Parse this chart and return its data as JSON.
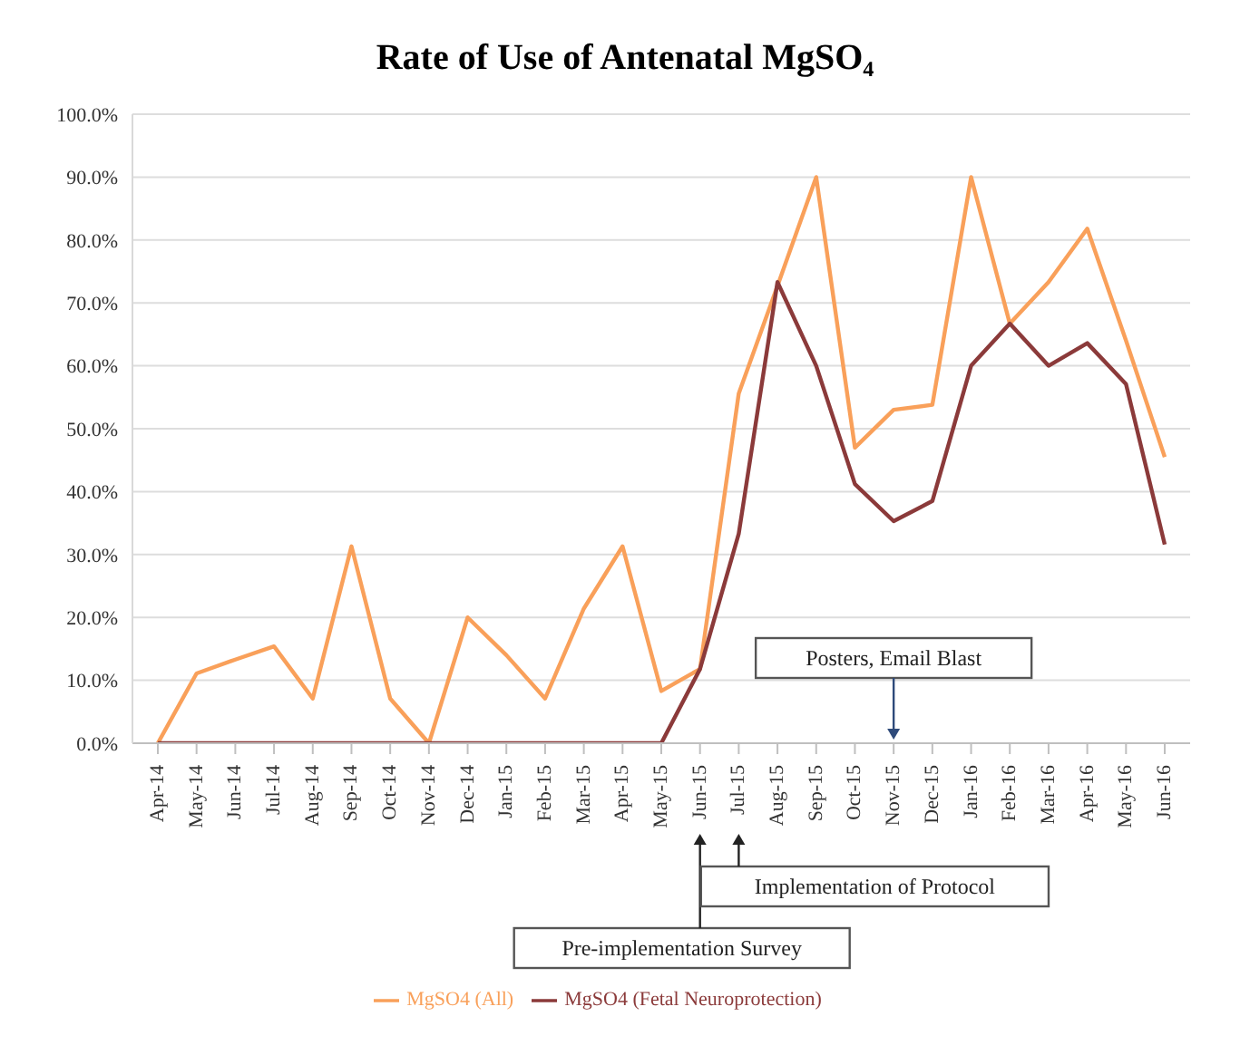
{
  "chart_data": {
    "type": "line",
    "title": "Rate of Use of Antenatal MgSO₄",
    "categories": [
      "Apr-14",
      "May-14",
      "Jun-14",
      "Jul-14",
      "Aug-14",
      "Sep-14",
      "Oct-14",
      "Nov-14",
      "Dec-14",
      "Jan-15",
      "Feb-15",
      "Mar-15",
      "Apr-15",
      "May-15",
      "Jun-15",
      "Jul-15",
      "Aug-15",
      "Sep-15",
      "Oct-15",
      "Nov-15",
      "Dec-15",
      "Jan-16",
      "Feb-16",
      "Mar-16",
      "Apr-16",
      "May-16",
      "Jun-16"
    ],
    "series": [
      {
        "name": "MgSO4 (All)",
        "color": "#f9a05a",
        "values": [
          0,
          11.1,
          13.3,
          15.4,
          7.1,
          31.3,
          7.1,
          0,
          20,
          14,
          7.1,
          21.4,
          31.3,
          8.3,
          11.8,
          55.6,
          72.7,
          90,
          47,
          53,
          53.8,
          90,
          66.7,
          73.3,
          81.8,
          64,
          45.5
        ]
      },
      {
        "name": "MgSO4 (Fetal Neuroprotection)",
        "color": "#8b3a3a",
        "values": [
          0,
          0,
          0,
          0,
          0,
          0,
          0,
          0,
          0,
          0,
          0,
          0,
          0,
          0,
          11.8,
          33.3,
          73.3,
          60,
          41.2,
          35.3,
          38.5,
          60,
          66.7,
          60,
          63.6,
          57.1,
          31.6
        ]
      }
    ],
    "ylim": [
      0,
      100
    ],
    "yticks": [
      {
        "value": 0,
        "label": "0.0%"
      },
      {
        "value": 10,
        "label": "10.0%"
      },
      {
        "value": 20,
        "label": "20.0%"
      },
      {
        "value": 30,
        "label": "30.0%"
      },
      {
        "value": 40,
        "label": "40.0%"
      },
      {
        "value": 50,
        "label": "50.0%"
      },
      {
        "value": 60,
        "label": "60.0%"
      },
      {
        "value": 70,
        "label": "70.0%"
      },
      {
        "value": 80,
        "label": "80.0%"
      },
      {
        "value": 90,
        "label": "90.0%"
      },
      {
        "value": 100,
        "label": "100.0%"
      }
    ],
    "grid": "y",
    "legend": "bottom",
    "marker": "none",
    "line_style": "solid",
    "annotations": [
      "Pre-implementation Survey",
      "Implementation of Protocol",
      "Posters, Email Blast"
    ]
  }
}
